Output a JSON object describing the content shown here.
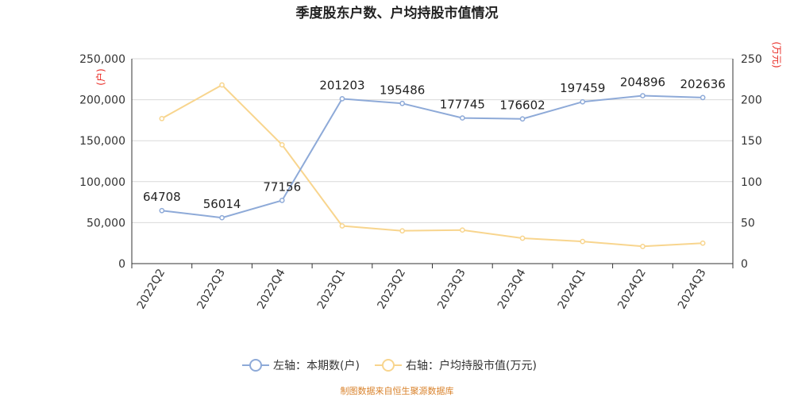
{
  "chart_data": {
    "type": "line",
    "title": "季度股东户数、户均持股市值情况",
    "categories": [
      "2022Q2",
      "2022Q3",
      "2022Q4",
      "2023Q1",
      "2023Q2",
      "2023Q3",
      "2023Q4",
      "2024Q1",
      "2024Q2",
      "2024Q3"
    ],
    "left_axis": {
      "unit": "(户)",
      "ylim": [
        0,
        250000
      ],
      "ticks": [
        "0",
        "50,000",
        "100,000",
        "150,000",
        "200,000",
        "250,000"
      ]
    },
    "right_axis": {
      "unit": "(万元)",
      "ylim": [
        0,
        250
      ],
      "ticks": [
        "0",
        "50",
        "100",
        "150",
        "200",
        "250"
      ]
    },
    "series": [
      {
        "name": "左轴：本期数(户)",
        "axis": "left",
        "color": "#8eaad8",
        "values": [
          64708,
          56014,
          77156,
          201203,
          195486,
          177745,
          176602,
          197459,
          204896,
          202636
        ],
        "labels": [
          "64708",
          "56014",
          "77156",
          "201203",
          "195486",
          "177745",
          "176602",
          "197459",
          "204896",
          "202636"
        ]
      },
      {
        "name": "右轴：户均持股市值(万元)",
        "axis": "right",
        "color": "#f8d58e",
        "values": [
          177,
          218,
          145,
          46,
          40,
          41,
          31,
          27,
          21,
          25
        ]
      }
    ],
    "grid": true,
    "legend_position": "bottom"
  },
  "source_text": "制图数据来自恒生聚源数据库"
}
